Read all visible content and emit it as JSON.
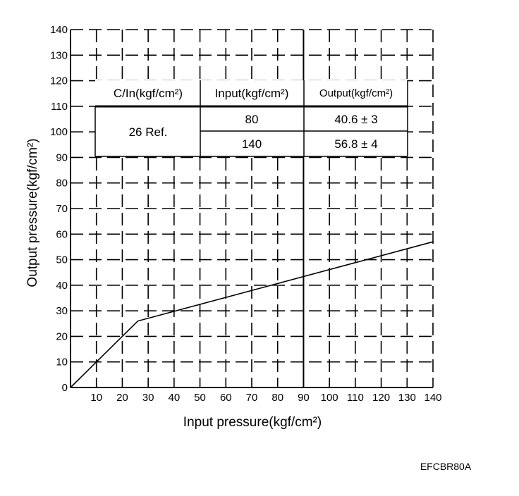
{
  "chart_data": {
    "type": "line",
    "xlabel": "Input pressure(kgf/cm²)",
    "ylabel": "Output pressure(kgf/cm²)",
    "xlim": [
      0,
      140
    ],
    "ylim": [
      0,
      140
    ],
    "x_ticks": [
      10,
      20,
      30,
      40,
      50,
      60,
      70,
      80,
      90,
      100,
      110,
      120,
      130,
      140
    ],
    "y_ticks": [
      0,
      10,
      20,
      30,
      40,
      50,
      60,
      70,
      80,
      90,
      100,
      110,
      120,
      130,
      140
    ],
    "grid": true,
    "series": [
      {
        "x": [
          0,
          26,
          140
        ],
        "y": [
          0,
          26,
          57
        ]
      }
    ]
  },
  "spec_table": {
    "headers": [
      "C/In(kgf/cm²)",
      "Input(kgf/cm²)",
      "Output(kgf/cm²)"
    ],
    "cutin": "26 Ref.",
    "rows": [
      {
        "input": "80",
        "output": "40.6 ± 3"
      },
      {
        "input": "140",
        "output": "56.8 ± 4"
      }
    ]
  },
  "figure_code": "EFCBR80A"
}
